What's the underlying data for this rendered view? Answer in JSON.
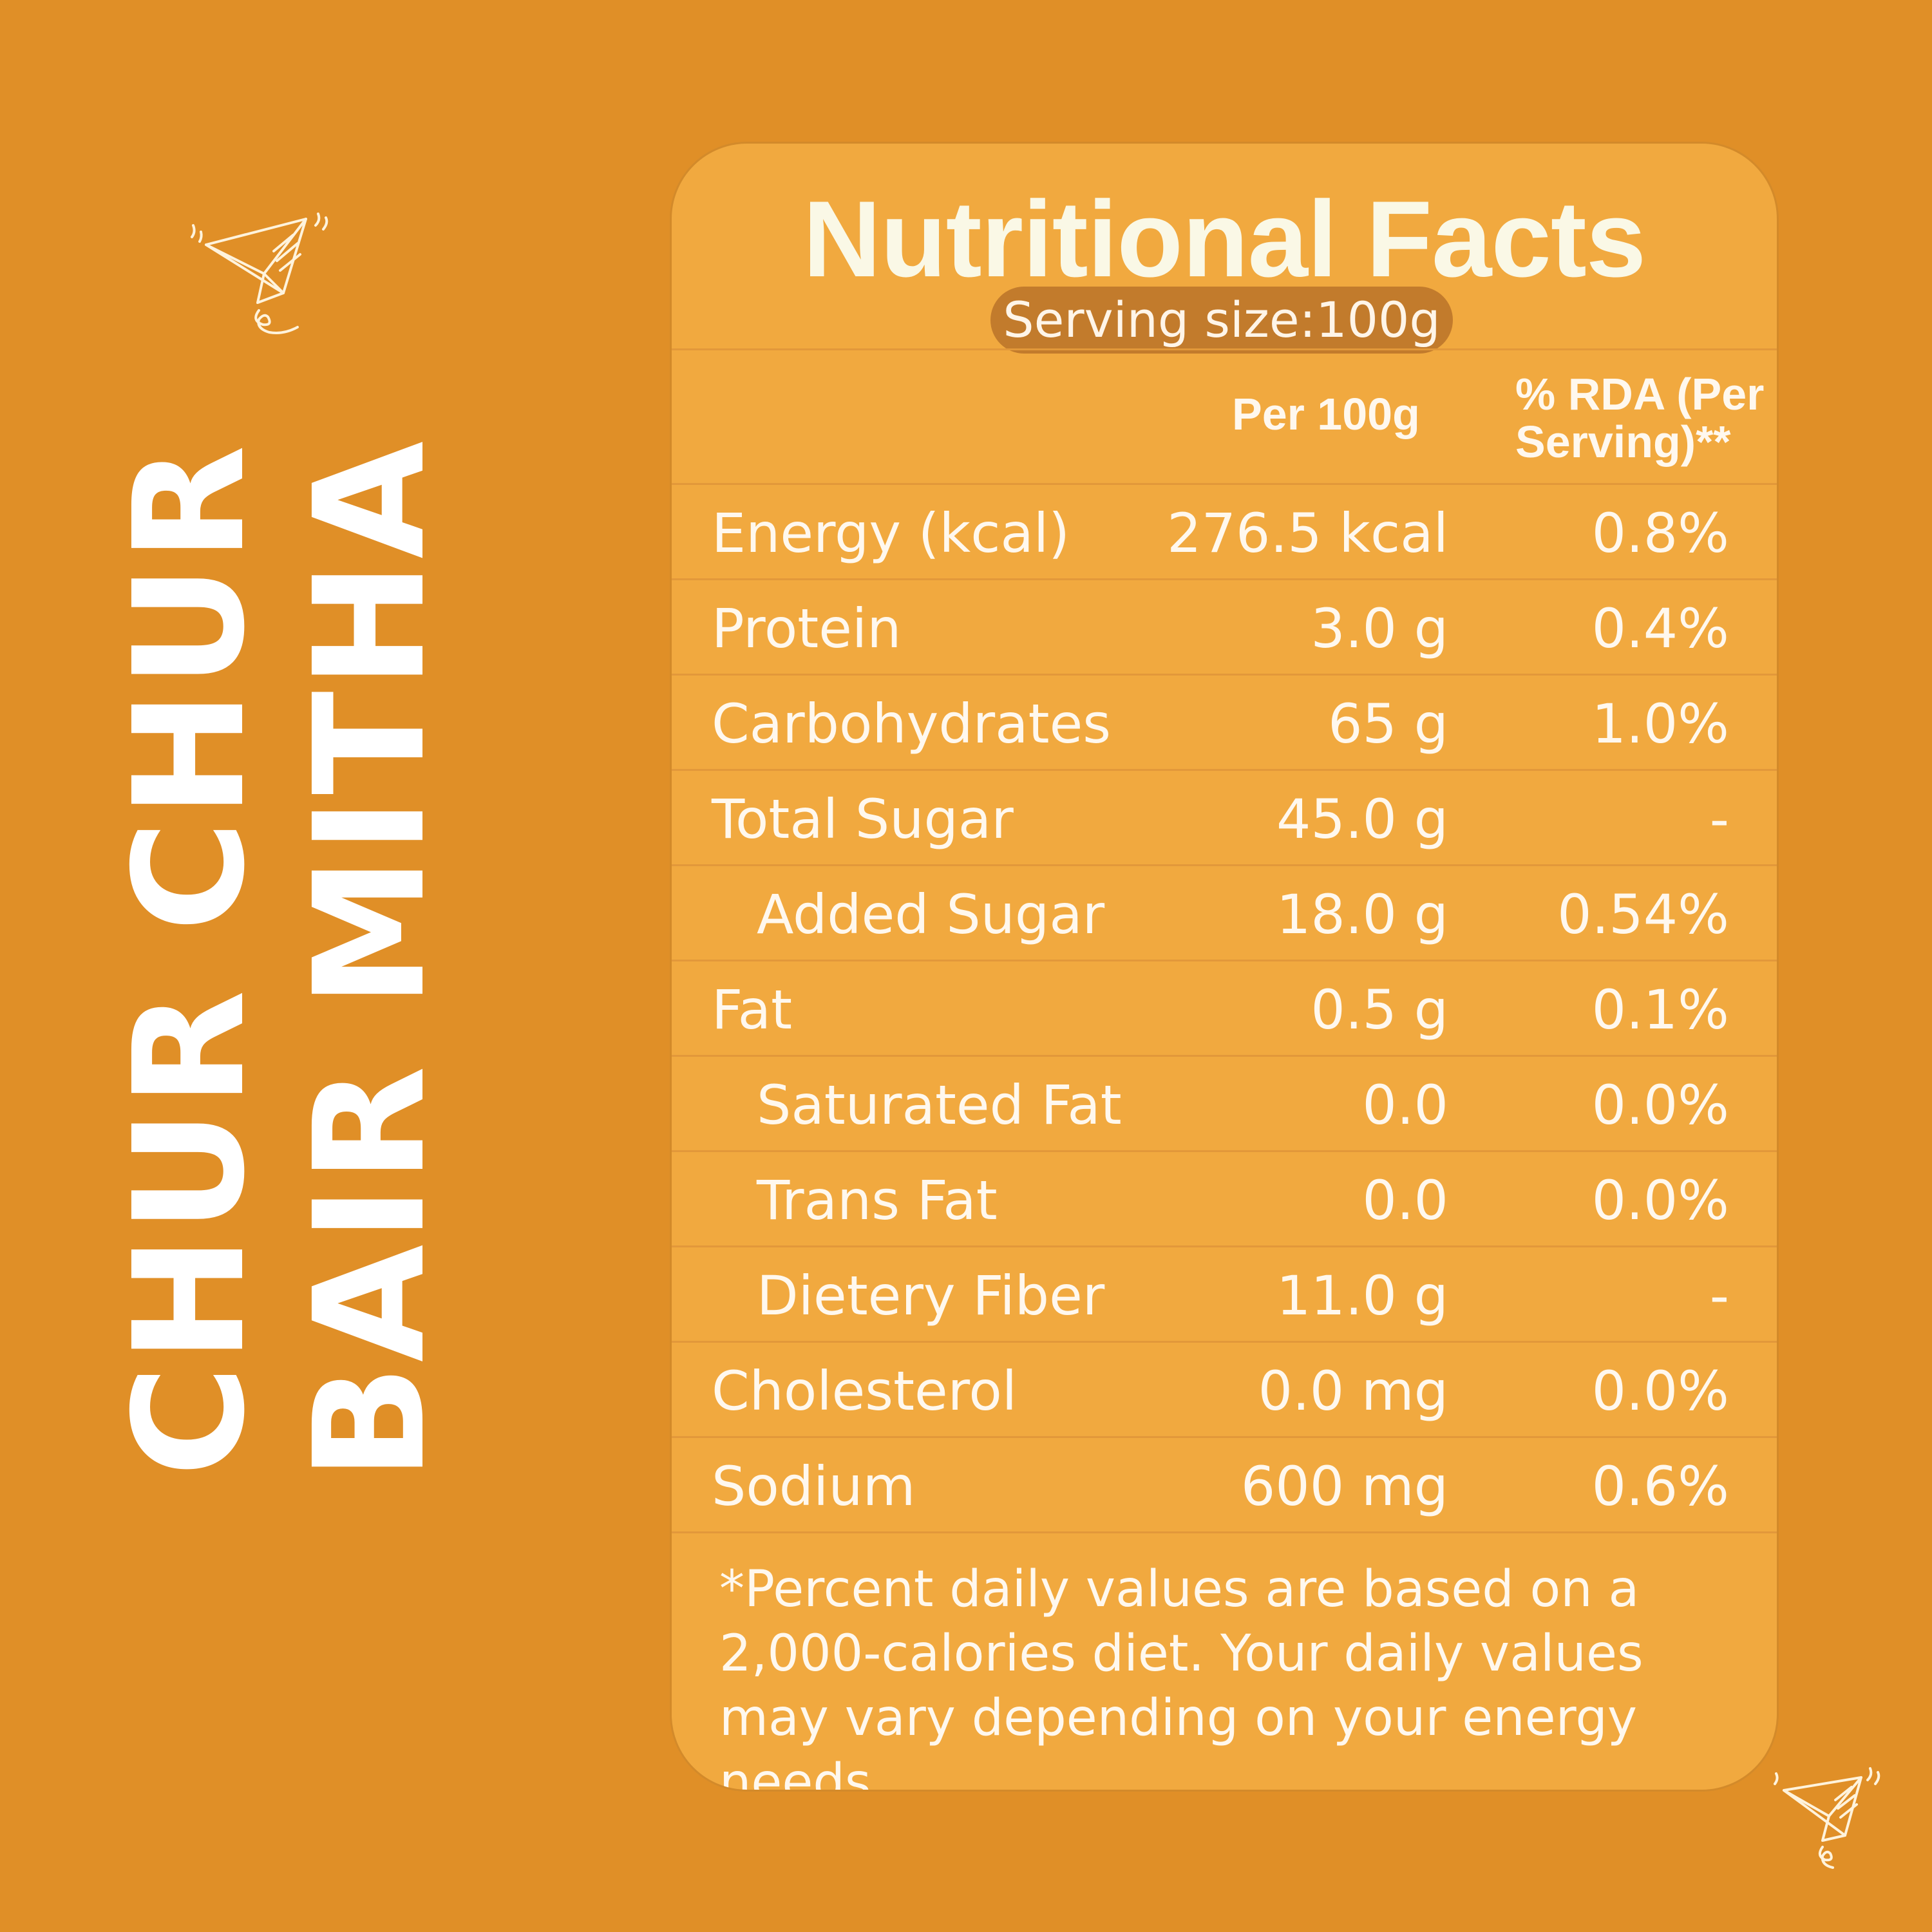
{
  "brand": {
    "line1": "CHUR CHUR",
    "line2": "BAIR MITHA"
  },
  "card": {
    "title": "Nutritional Facts",
    "serving": "Serving size:100g",
    "headers": {
      "per": "Per 100g",
      "rda": "% RDA (Per Serving)**"
    },
    "rows": [
      {
        "name": "Energy (kcal)",
        "value": "276.5 kcal",
        "rda": "0.8%"
      },
      {
        "name": "Protein",
        "value": "3.0 g",
        "rda": "0.4%"
      },
      {
        "name": "Carbohydrates",
        "value": "65 g",
        "rda": "1.0%"
      },
      {
        "name": "Total Sugar",
        "value": "45.0 g",
        "rda": "-"
      },
      {
        "name": "Added Sugar",
        "value": "18.0 g",
        "rda": "0.54%"
      },
      {
        "name": "Fat",
        "value": "0.5 g",
        "rda": "0.1%"
      },
      {
        "name": "Saturated Fat",
        "value": "0.0",
        "rda": "0.0%"
      },
      {
        "name": "Trans Fat",
        "value": "0.0",
        "rda": "0.0%"
      },
      {
        "name": "Dietery Fiber",
        "value": "11.0 g",
        "rda": "-"
      },
      {
        "name": "Cholesterol",
        "value": "0.0 mg",
        "rda": "0.0%"
      },
      {
        "name": "Sodium",
        "value": "600 mg",
        "rda": "0.6%"
      }
    ],
    "footnote": "*Percent daily values are based on a 2,000-calories diet. Your daily values may vary depending on your energy needs."
  },
  "icons": [
    "paper-plane-icon",
    "paper-plane-icon"
  ],
  "colors": {
    "background": "#E08F27",
    "card": "#F1A93F",
    "pill": "#C27B2C",
    "text": "#FFF8EE"
  }
}
